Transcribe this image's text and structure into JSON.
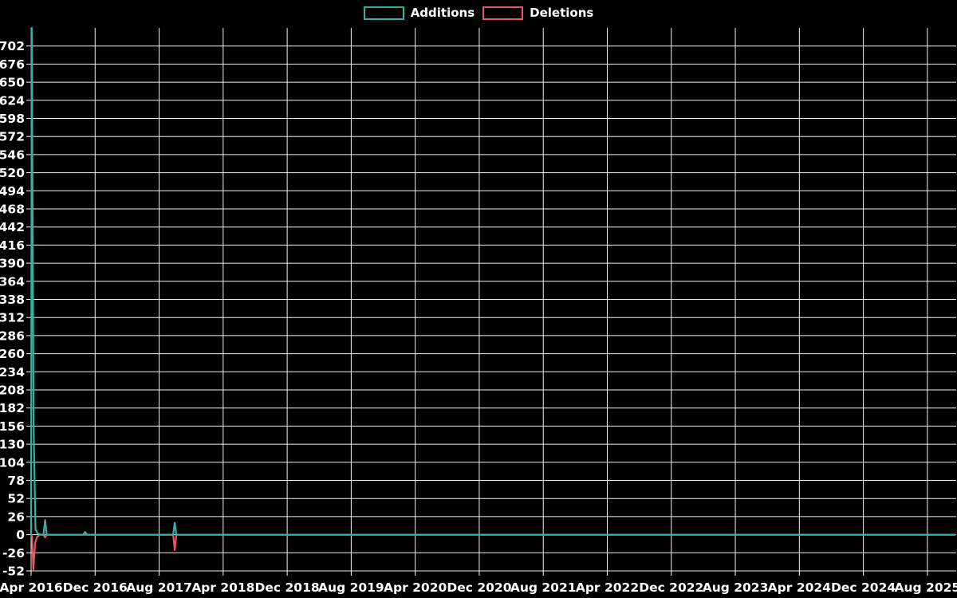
{
  "page": {
    "background": "#000000",
    "text_color": "#ffffff"
  },
  "legend": {
    "position": "top-center",
    "items": [
      {
        "label": "Additions",
        "color": "#35afa8"
      },
      {
        "label": "Deletions",
        "color": "#e9536e"
      }
    ]
  },
  "chart_data": {
    "type": "line",
    "title": "",
    "background": "#000000",
    "grid": true,
    "grid_color": "#f0f0f0",
    "tick_color": "#ffffff",
    "label_color": "#ffffff",
    "legend_position": "top-center",
    "xlabel": "",
    "ylabel": "",
    "x_unit": "months since Apr 2016",
    "xlim": [
      0,
      115.4
    ],
    "ylim": [
      -52,
      728
    ],
    "y_ticks": [
      702,
      676,
      650,
      624,
      598,
      572,
      546,
      520,
      494,
      468,
      442,
      416,
      390,
      364,
      338,
      312,
      286,
      260,
      234,
      208,
      182,
      156,
      130,
      104,
      78,
      52,
      26,
      0,
      -26,
      -52
    ],
    "x_ticks": [
      {
        "label": "Apr 2016",
        "m": 0
      },
      {
        "label": "Dec 2016",
        "m": 8
      },
      {
        "label": "Aug 2017",
        "m": 16
      },
      {
        "label": "Apr 2018",
        "m": 24
      },
      {
        "label": "Dec 2018",
        "m": 32
      },
      {
        "label": "Aug 2019",
        "m": 40
      },
      {
        "label": "Apr 2020",
        "m": 48
      },
      {
        "label": "Dec 2020",
        "m": 56
      },
      {
        "label": "Aug 2021",
        "m": 64
      },
      {
        "label": "Apr 2022",
        "m": 72
      },
      {
        "label": "Dec 2022",
        "m": 80
      },
      {
        "label": "Aug 2023",
        "m": 88
      },
      {
        "label": "Apr 2024",
        "m": 96
      },
      {
        "label": "Dec 2024",
        "m": 104
      },
      {
        "label": "Aug 2025",
        "m": 112
      }
    ],
    "series": [
      {
        "name": "Additions",
        "color": "#35afa8",
        "points": [
          [
            0,
            0
          ],
          [
            0.08,
            728
          ],
          [
            0.31,
            158
          ],
          [
            0.55,
            8
          ],
          [
            0.8,
            2
          ],
          [
            1.2,
            0
          ],
          [
            1.55,
            0
          ],
          [
            1.75,
            21
          ],
          [
            1.95,
            0
          ],
          [
            6.5,
            0
          ],
          [
            6.75,
            4
          ],
          [
            7.0,
            0
          ],
          [
            17.75,
            0
          ],
          [
            17.95,
            17
          ],
          [
            18.15,
            0
          ],
          [
            115.4,
            0
          ]
        ]
      },
      {
        "name": "Deletions",
        "color": "#e9536e",
        "points": [
          [
            0,
            0
          ],
          [
            0.12,
            -3
          ],
          [
            0.28,
            -50
          ],
          [
            0.5,
            -12
          ],
          [
            0.75,
            -3
          ],
          [
            1.1,
            0
          ],
          [
            1.55,
            0
          ],
          [
            1.75,
            -4
          ],
          [
            1.95,
            0
          ],
          [
            17.75,
            0
          ],
          [
            17.95,
            -22
          ],
          [
            18.15,
            0
          ],
          [
            115.4,
            0
          ]
        ]
      }
    ]
  }
}
